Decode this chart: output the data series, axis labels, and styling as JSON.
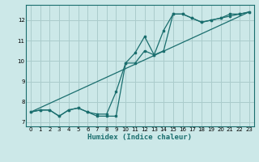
{
  "xlabel": "Humidex (Indice chaleur)",
  "background_color": "#cce8e8",
  "grid_color": "#aacccc",
  "line_color": "#1a6e6e",
  "xlim": [
    -0.5,
    23.5
  ],
  "ylim": [
    6.8,
    12.75
  ],
  "xticks": [
    0,
    1,
    2,
    3,
    4,
    5,
    6,
    7,
    8,
    9,
    10,
    11,
    12,
    13,
    14,
    15,
    16,
    17,
    18,
    19,
    20,
    21,
    22,
    23
  ],
  "yticks": [
    7,
    8,
    9,
    10,
    11,
    12
  ],
  "line1_x": [
    0,
    1,
    2,
    3,
    4,
    5,
    6,
    7,
    8,
    9,
    10,
    11,
    12,
    13,
    14,
    15,
    16,
    17,
    18,
    19,
    20,
    21,
    22,
    23
  ],
  "line1_y": [
    7.5,
    7.6,
    7.6,
    7.3,
    7.6,
    7.7,
    7.5,
    7.4,
    7.4,
    8.5,
    9.9,
    9.9,
    10.5,
    10.3,
    10.5,
    12.3,
    12.3,
    12.1,
    11.9,
    12.0,
    12.1,
    12.2,
    12.3,
    12.4
  ],
  "line2_x": [
    0,
    1,
    2,
    3,
    4,
    5,
    6,
    7,
    8,
    9,
    10,
    11,
    12,
    13,
    14,
    15,
    16,
    17,
    18,
    19,
    20,
    21,
    22,
    23
  ],
  "line2_y": [
    7.5,
    7.6,
    7.6,
    7.3,
    7.6,
    7.7,
    7.5,
    7.3,
    7.3,
    7.3,
    9.9,
    10.4,
    11.2,
    10.3,
    11.5,
    12.3,
    12.3,
    12.1,
    11.9,
    12.0,
    12.1,
    12.3,
    12.3,
    12.4
  ],
  "line3_x": [
    0,
    23
  ],
  "line3_y": [
    7.5,
    12.4
  ]
}
